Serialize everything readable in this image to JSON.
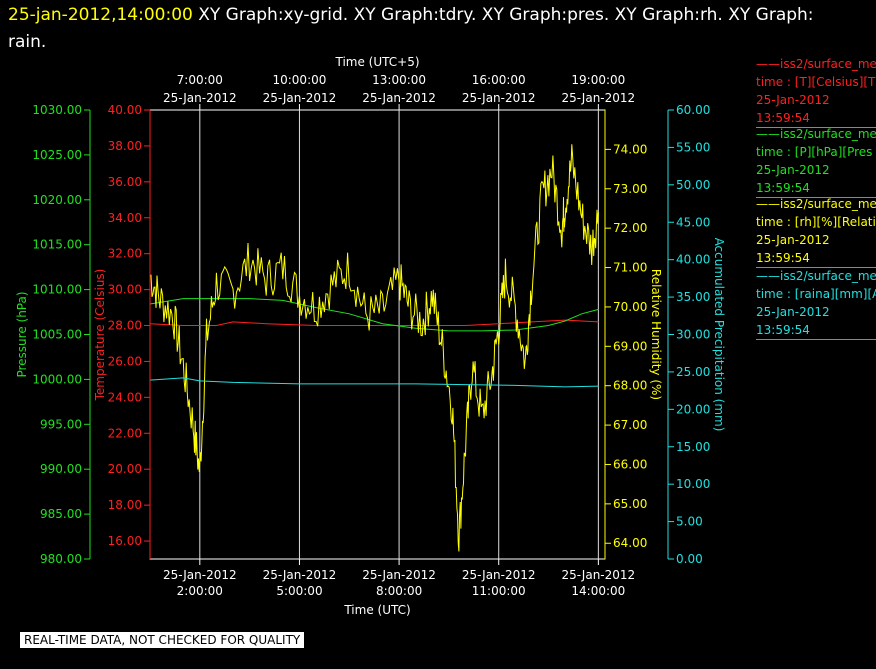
{
  "header": {
    "timestamp": "25-jan-2012,14:00:00",
    "title_line1": " XY Graph:xy-grid.  XY Graph:tdry.  XY Graph:pres.  XY Graph:rh.  XY Graph:",
    "title_line2": "rain."
  },
  "notice": "REAL-TIME DATA, NOT CHECKED FOR QUALITY",
  "legend": [
    {
      "color": "#ff2020",
      "name": "iss2/surface_met",
      "field": "time : [T][Celsius][T",
      "date": "25-Jan-2012",
      "time": "13:59:54"
    },
    {
      "color": "#20e020",
      "name": "iss2/surface_met",
      "field": "time : [P][hPa][Pres",
      "date": "25-Jan-2012",
      "time": "13:59:54"
    },
    {
      "color": "#ffff00",
      "name": "iss2/surface_met",
      "field": "time : [rh][%][Relati",
      "date": "25-Jan-2012",
      "time": "13:59:54"
    },
    {
      "color": "#20e0e0",
      "name": "iss2/surface_met",
      "field": "time : [raina][mm][A",
      "date": "25-Jan-2012",
      "time": "13:59:54"
    }
  ],
  "chart_data": {
    "type": "line",
    "x_top_label": "Time (UTC+5)",
    "x_bottom_label": "Time (UTC)",
    "x_range_hours_utc": [
      0.5,
      14.2
    ],
    "x_bottom_ticks": [
      {
        "date": "25-Jan-2012",
        "time": "2:00:00",
        "h": 2
      },
      {
        "date": "25-Jan-2012",
        "time": "5:00:00",
        "h": 5
      },
      {
        "date": "25-Jan-2012",
        "time": "8:00:00",
        "h": 8
      },
      {
        "date": "25-Jan-2012",
        "time": "11:00:00",
        "h": 11
      },
      {
        "date": "25-Jan-2012",
        "time": "14:00:00",
        "h": 14
      }
    ],
    "x_top_ticks": [
      {
        "time": "7:00:00",
        "date": "25-Jan-2012",
        "h": 2
      },
      {
        "time": "10:00:00",
        "date": "25-Jan-2012",
        "h": 5
      },
      {
        "time": "13:00:00",
        "date": "25-Jan-2012",
        "h": 8
      },
      {
        "time": "16:00:00",
        "date": "25-Jan-2012",
        "h": 11
      },
      {
        "time": "19:00:00",
        "date": "25-Jan-2012",
        "h": 14
      }
    ],
    "axes": {
      "pressure": {
        "label": "Pressure (hPa)",
        "color": "#20e020",
        "range": [
          980,
          1030
        ],
        "ticks": [
          "980.00",
          "985.00",
          "990.00",
          "995.00",
          "1000.00",
          "1005.00",
          "1010.00",
          "1015.00",
          "1020.00",
          "1025.00",
          "1030.00"
        ]
      },
      "temperature": {
        "label": "Temperature (Celsius)",
        "color": "#ff2020",
        "range": [
          15,
          40
        ],
        "ticks": [
          "16.00",
          "18.00",
          "20.00",
          "22.00",
          "24.00",
          "26.00",
          "28.00",
          "30.00",
          "32.00",
          "34.00",
          "36.00",
          "38.00",
          "40.00"
        ]
      },
      "humidity": {
        "label": "Relative Humidity (%)",
        "color": "#ffff00",
        "range": [
          63.6,
          75.0
        ],
        "ticks": [
          "64.00",
          "65.00",
          "66.00",
          "67.00",
          "68.00",
          "69.00",
          "70.00",
          "71.00",
          "72.00",
          "73.00",
          "74.00"
        ]
      },
      "precip": {
        "label": "Accumulated Precipitation (mm)",
        "color": "#20e0e0",
        "range": [
          0,
          60
        ],
        "ticks": [
          "0.00",
          "5.00",
          "10.00",
          "15.00",
          "20.00",
          "25.00",
          "30.00",
          "35.00",
          "40.00",
          "45.00",
          "50.00",
          "55.00",
          "60.00"
        ]
      }
    },
    "series": [
      {
        "axis": "temperature",
        "color": "#ff2020",
        "x": [
          0.5,
          1.5,
          2.5,
          3.0,
          4.0,
          5.5,
          7.0,
          8.5,
          10.0,
          11.0,
          12.0,
          13.0,
          14.0
        ],
        "values": [
          28.1,
          28.0,
          28.0,
          28.2,
          28.1,
          28.0,
          28.0,
          28.0,
          28.0,
          28.1,
          28.2,
          28.3,
          28.2
        ]
      },
      {
        "axis": "pressure",
        "color": "#20e020",
        "x": [
          0.5,
          1.5,
          2.5,
          3.5,
          4.5,
          5.5,
          6.5,
          7.5,
          8.5,
          9.5,
          10.5,
          11.5,
          12.5,
          13.0,
          13.5,
          14.0
        ],
        "values": [
          1008.4,
          1009.0,
          1009.0,
          1009.0,
          1008.8,
          1008.0,
          1007.3,
          1006.2,
          1005.7,
          1005.4,
          1005.4,
          1005.5,
          1006.0,
          1006.5,
          1007.3,
          1007.8
        ]
      },
      {
        "axis": "humidity",
        "color": "#ffff00",
        "x": [
          0.5,
          0.8,
          1.2,
          1.5,
          1.8,
          2.0,
          2.2,
          2.5,
          3.0,
          3.5,
          4.0,
          4.5,
          5.0,
          5.5,
          6.0,
          6.5,
          7.0,
          7.5,
          8.0,
          8.3,
          8.7,
          9.0,
          9.3,
          9.6,
          9.8,
          10.0,
          10.2,
          10.5,
          10.8,
          11.0,
          11.2,
          11.5,
          11.8,
          12.0,
          12.3,
          12.6,
          12.9,
          13.0,
          13.2,
          13.5,
          13.8,
          14.0
        ],
        "values": [
          70.8,
          70.2,
          69.8,
          68.5,
          67.0,
          65.8,
          69.2,
          70.6,
          70.4,
          71.2,
          70.7,
          71.0,
          70.3,
          70.0,
          70.6,
          71.0,
          69.8,
          69.9,
          70.7,
          70.0,
          69.6,
          70.3,
          69.0,
          67.5,
          64.2,
          66.5,
          68.5,
          67.2,
          68.3,
          69.5,
          70.8,
          70.0,
          68.6,
          70.7,
          72.8,
          73.5,
          72.0,
          72.6,
          73.7,
          72.3,
          71.5,
          72.4
        ]
      },
      {
        "axis": "precip",
        "color": "#20e0e0",
        "x": [
          0.5,
          1.5,
          2.0,
          3.0,
          5.0,
          7.0,
          8.5,
          10.0,
          11.5,
          13.0,
          14.0
        ],
        "values": [
          23.9,
          24.2,
          23.8,
          23.6,
          23.4,
          23.4,
          23.4,
          23.3,
          23.2,
          23.0,
          23.1
        ]
      }
    ]
  }
}
